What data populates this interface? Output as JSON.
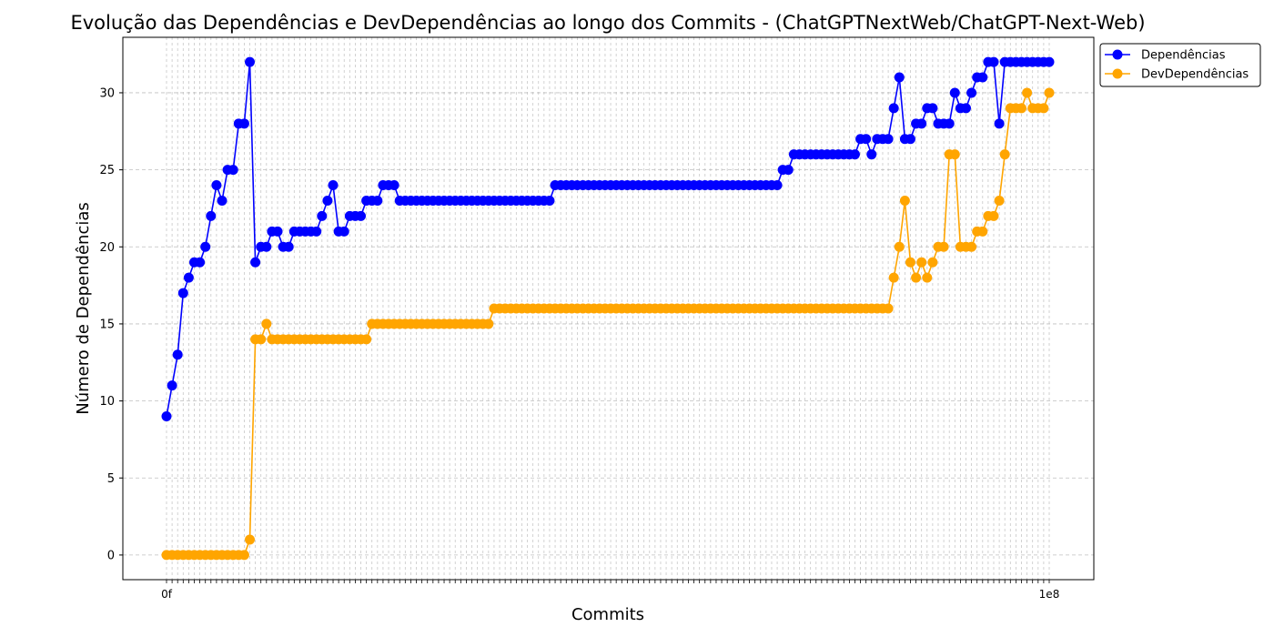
{
  "chart_data": {
    "type": "line",
    "title": "Evolução das Dependências e DevDependências ao longo dos Commits - (ChatGPTNextWeb/ChatGPT-Next-Web)",
    "xlabel": "Commits",
    "ylabel": "Número de Dependências",
    "ylim": [
      -1.6,
      33.6
    ],
    "yticks": [
      0,
      5,
      10,
      15,
      20,
      25,
      30
    ],
    "grid": true,
    "legend": "upper right, outside plot",
    "n_commits": 160,
    "x_first_label": "0f",
    "x_last_label": "1e8",
    "series": [
      {
        "name": "Dependências",
        "color": "#0000ff",
        "values": [
          9,
          11,
          13,
          17,
          18,
          19,
          19,
          20,
          22,
          24,
          23,
          25,
          25,
          28,
          28,
          32,
          19,
          20,
          20,
          21,
          21,
          20,
          20,
          21,
          21,
          21,
          21,
          21,
          22,
          23,
          24,
          21,
          21,
          22,
          22,
          22,
          23,
          23,
          23,
          24,
          24,
          24,
          23,
          23,
          23,
          23,
          23,
          23,
          23,
          23,
          23,
          23,
          23,
          23,
          23,
          23,
          23,
          23,
          23,
          23,
          23,
          23,
          23,
          23,
          23,
          23,
          23,
          23,
          23,
          23,
          24,
          24,
          24,
          24,
          24,
          24,
          24,
          24,
          24,
          24,
          24,
          24,
          24,
          24,
          24,
          24,
          24,
          24,
          24,
          24,
          24,
          24,
          24,
          24,
          24,
          24,
          24,
          24,
          24,
          24,
          24,
          24,
          24,
          24,
          24,
          24,
          24,
          24,
          24,
          24,
          24,
          25,
          25,
          26,
          26,
          26,
          26,
          26,
          26,
          26,
          26,
          26,
          26,
          26,
          26,
          27,
          27,
          26,
          27,
          27,
          27,
          29,
          31,
          27,
          27,
          28,
          28,
          29,
          29,
          28,
          28,
          28,
          30,
          29,
          29,
          30,
          31,
          31,
          32,
          32,
          28,
          32,
          32,
          32,
          32,
          32,
          32,
          32,
          32,
          32
        ]
      },
      {
        "name": "DevDependências",
        "color": "#ffa500",
        "values": [
          0,
          0,
          0,
          0,
          0,
          0,
          0,
          0,
          0,
          0,
          0,
          0,
          0,
          0,
          0,
          1,
          14,
          14,
          15,
          14,
          14,
          14,
          14,
          14,
          14,
          14,
          14,
          14,
          14,
          14,
          14,
          14,
          14,
          14,
          14,
          14,
          14,
          15,
          15,
          15,
          15,
          15,
          15,
          15,
          15,
          15,
          15,
          15,
          15,
          15,
          15,
          15,
          15,
          15,
          15,
          15,
          15,
          15,
          15,
          16,
          16,
          16,
          16,
          16,
          16,
          16,
          16,
          16,
          16,
          16,
          16,
          16,
          16,
          16,
          16,
          16,
          16,
          16,
          16,
          16,
          16,
          16,
          16,
          16,
          16,
          16,
          16,
          16,
          16,
          16,
          16,
          16,
          16,
          16,
          16,
          16,
          16,
          16,
          16,
          16,
          16,
          16,
          16,
          16,
          16,
          16,
          16,
          16,
          16,
          16,
          16,
          16,
          16,
          16,
          16,
          16,
          16,
          16,
          16,
          16,
          16,
          16,
          16,
          16,
          16,
          16,
          16,
          16,
          16,
          16,
          16,
          18,
          20,
          23,
          19,
          18,
          19,
          18,
          19,
          20,
          20,
          26,
          26,
          20,
          20,
          20,
          21,
          21,
          22,
          22,
          23,
          26,
          29,
          29,
          29,
          30,
          29,
          29,
          29,
          30
        ]
      }
    ]
  }
}
